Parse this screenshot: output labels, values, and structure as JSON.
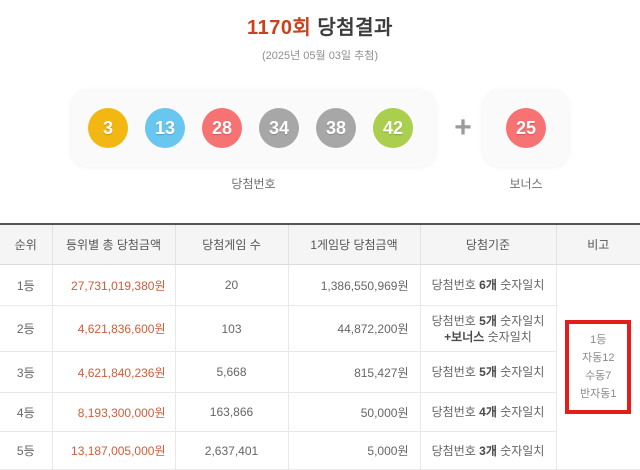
{
  "header": {
    "round": "1170회",
    "title_suffix": "당첨결과",
    "draw_date": "(2025년 05월 03일 추첨)"
  },
  "numbers": {
    "winning_label": "당첨번호",
    "bonus_label": "보너스",
    "plus": "+",
    "balls": [
      {
        "value": "3",
        "color": "#f2b712"
      },
      {
        "value": "13",
        "color": "#68c6ef"
      },
      {
        "value": "28",
        "color": "#f77272"
      },
      {
        "value": "34",
        "color": "#a7a7a7"
      },
      {
        "value": "38",
        "color": "#a7a7a7"
      },
      {
        "value": "42",
        "color": "#aace4d"
      }
    ],
    "bonus_ball": {
      "value": "25",
      "color": "#f77272"
    }
  },
  "table": {
    "headers": [
      "순위",
      "등위별 총 당첨금액",
      "당첨게임 수",
      "1게임당 당첨금액",
      "당첨기준",
      "비고"
    ],
    "rows": [
      {
        "rank": "1등",
        "total": "27,731,019,380원",
        "games": "20",
        "per_game": "1,386,550,969원",
        "crit_prefix": "당첨번호 ",
        "crit_bold": "6개",
        "crit_suffix": " 숫자일치"
      },
      {
        "rank": "2등",
        "total": "4,621,836,600원",
        "games": "103",
        "per_game": "44,872,200원",
        "crit_prefix": "당첨번호 ",
        "crit_bold": "5개",
        "crit_suffix": " 숫자일치",
        "crit2_bold": "+보너스",
        "crit2_suffix": " 숫자일치"
      },
      {
        "rank": "3등",
        "total": "4,621,840,236원",
        "games": "5,668",
        "per_game": "815,427원",
        "crit_prefix": "당첨번호 ",
        "crit_bold": "5개",
        "crit_suffix": " 숫자일치"
      },
      {
        "rank": "4등",
        "total": "8,193,300,000원",
        "games": "163,866",
        "per_game": "50,000원",
        "crit_prefix": "당첨번호 ",
        "crit_bold": "4개",
        "crit_suffix": " 숫자일치"
      },
      {
        "rank": "5등",
        "total": "13,187,005,000원",
        "games": "2,637,401",
        "per_game": "5,000원",
        "crit_prefix": "당첨번호 ",
        "crit_bold": "3개",
        "crit_suffix": " 숫자일치"
      }
    ],
    "note": {
      "lines": [
        "1등",
        "자동12",
        "수동7",
        "반자동1"
      ]
    }
  },
  "colors": {
    "accent_title": "#c8431c",
    "amount_text": "#d05c3c",
    "highlight_box_border": "#e41d1b"
  }
}
